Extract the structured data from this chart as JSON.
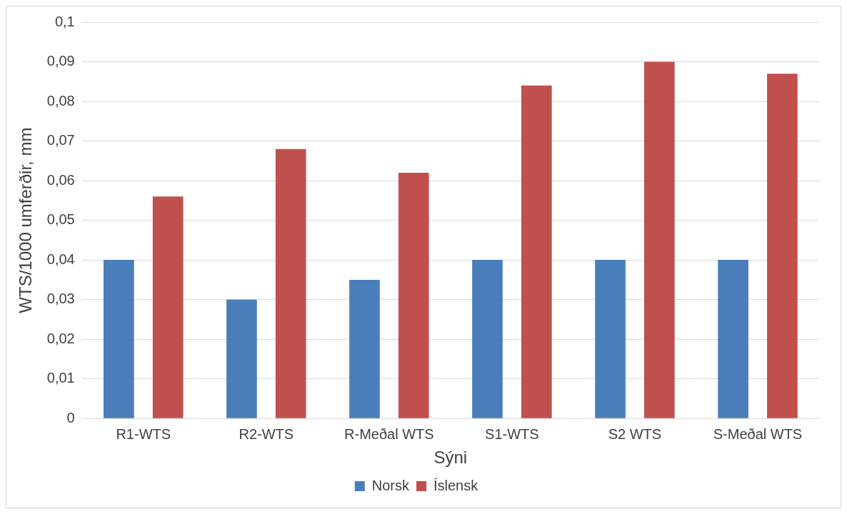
{
  "chart_data": {
    "type": "bar",
    "xlabel": "Sýni",
    "ylabel": "WTS/1000 umferðir, mm",
    "categories": [
      "R1-WTS",
      "R2-WTS",
      "R-Meðal WTS",
      "S1-WTS",
      "S2 WTS",
      "S-Meðal WTS"
    ],
    "series": [
      {
        "name": "Norsk",
        "color": "#4a7ebb",
        "values": [
          0.04,
          0.03,
          0.035,
          0.04,
          0.04,
          0.04
        ]
      },
      {
        "name": "Íslensk",
        "color": "#c0504d",
        "values": [
          0.056,
          0.068,
          0.062,
          0.084,
          0.09,
          0.087
        ]
      }
    ],
    "ylim": [
      0,
      0.1
    ],
    "yticks": [
      0,
      {
        "value": 0.01,
        "label": "0,01"
      },
      {
        "value": 0.02,
        "label": "0,02"
      },
      {
        "value": 0.03,
        "label": "0,03"
      },
      {
        "value": 0.04,
        "label": "0,04"
      },
      {
        "value": 0.05,
        "label": "0,05"
      },
      {
        "value": 0.06,
        "label": "0,06"
      },
      {
        "value": 0.07,
        "label": "0,07"
      },
      {
        "value": 0.08,
        "label": "0,08"
      },
      {
        "value": 0.09,
        "label": "0,09"
      },
      {
        "value": 0.1,
        "label": "0,1"
      }
    ],
    "grid": "y",
    "legend": "bottom"
  }
}
